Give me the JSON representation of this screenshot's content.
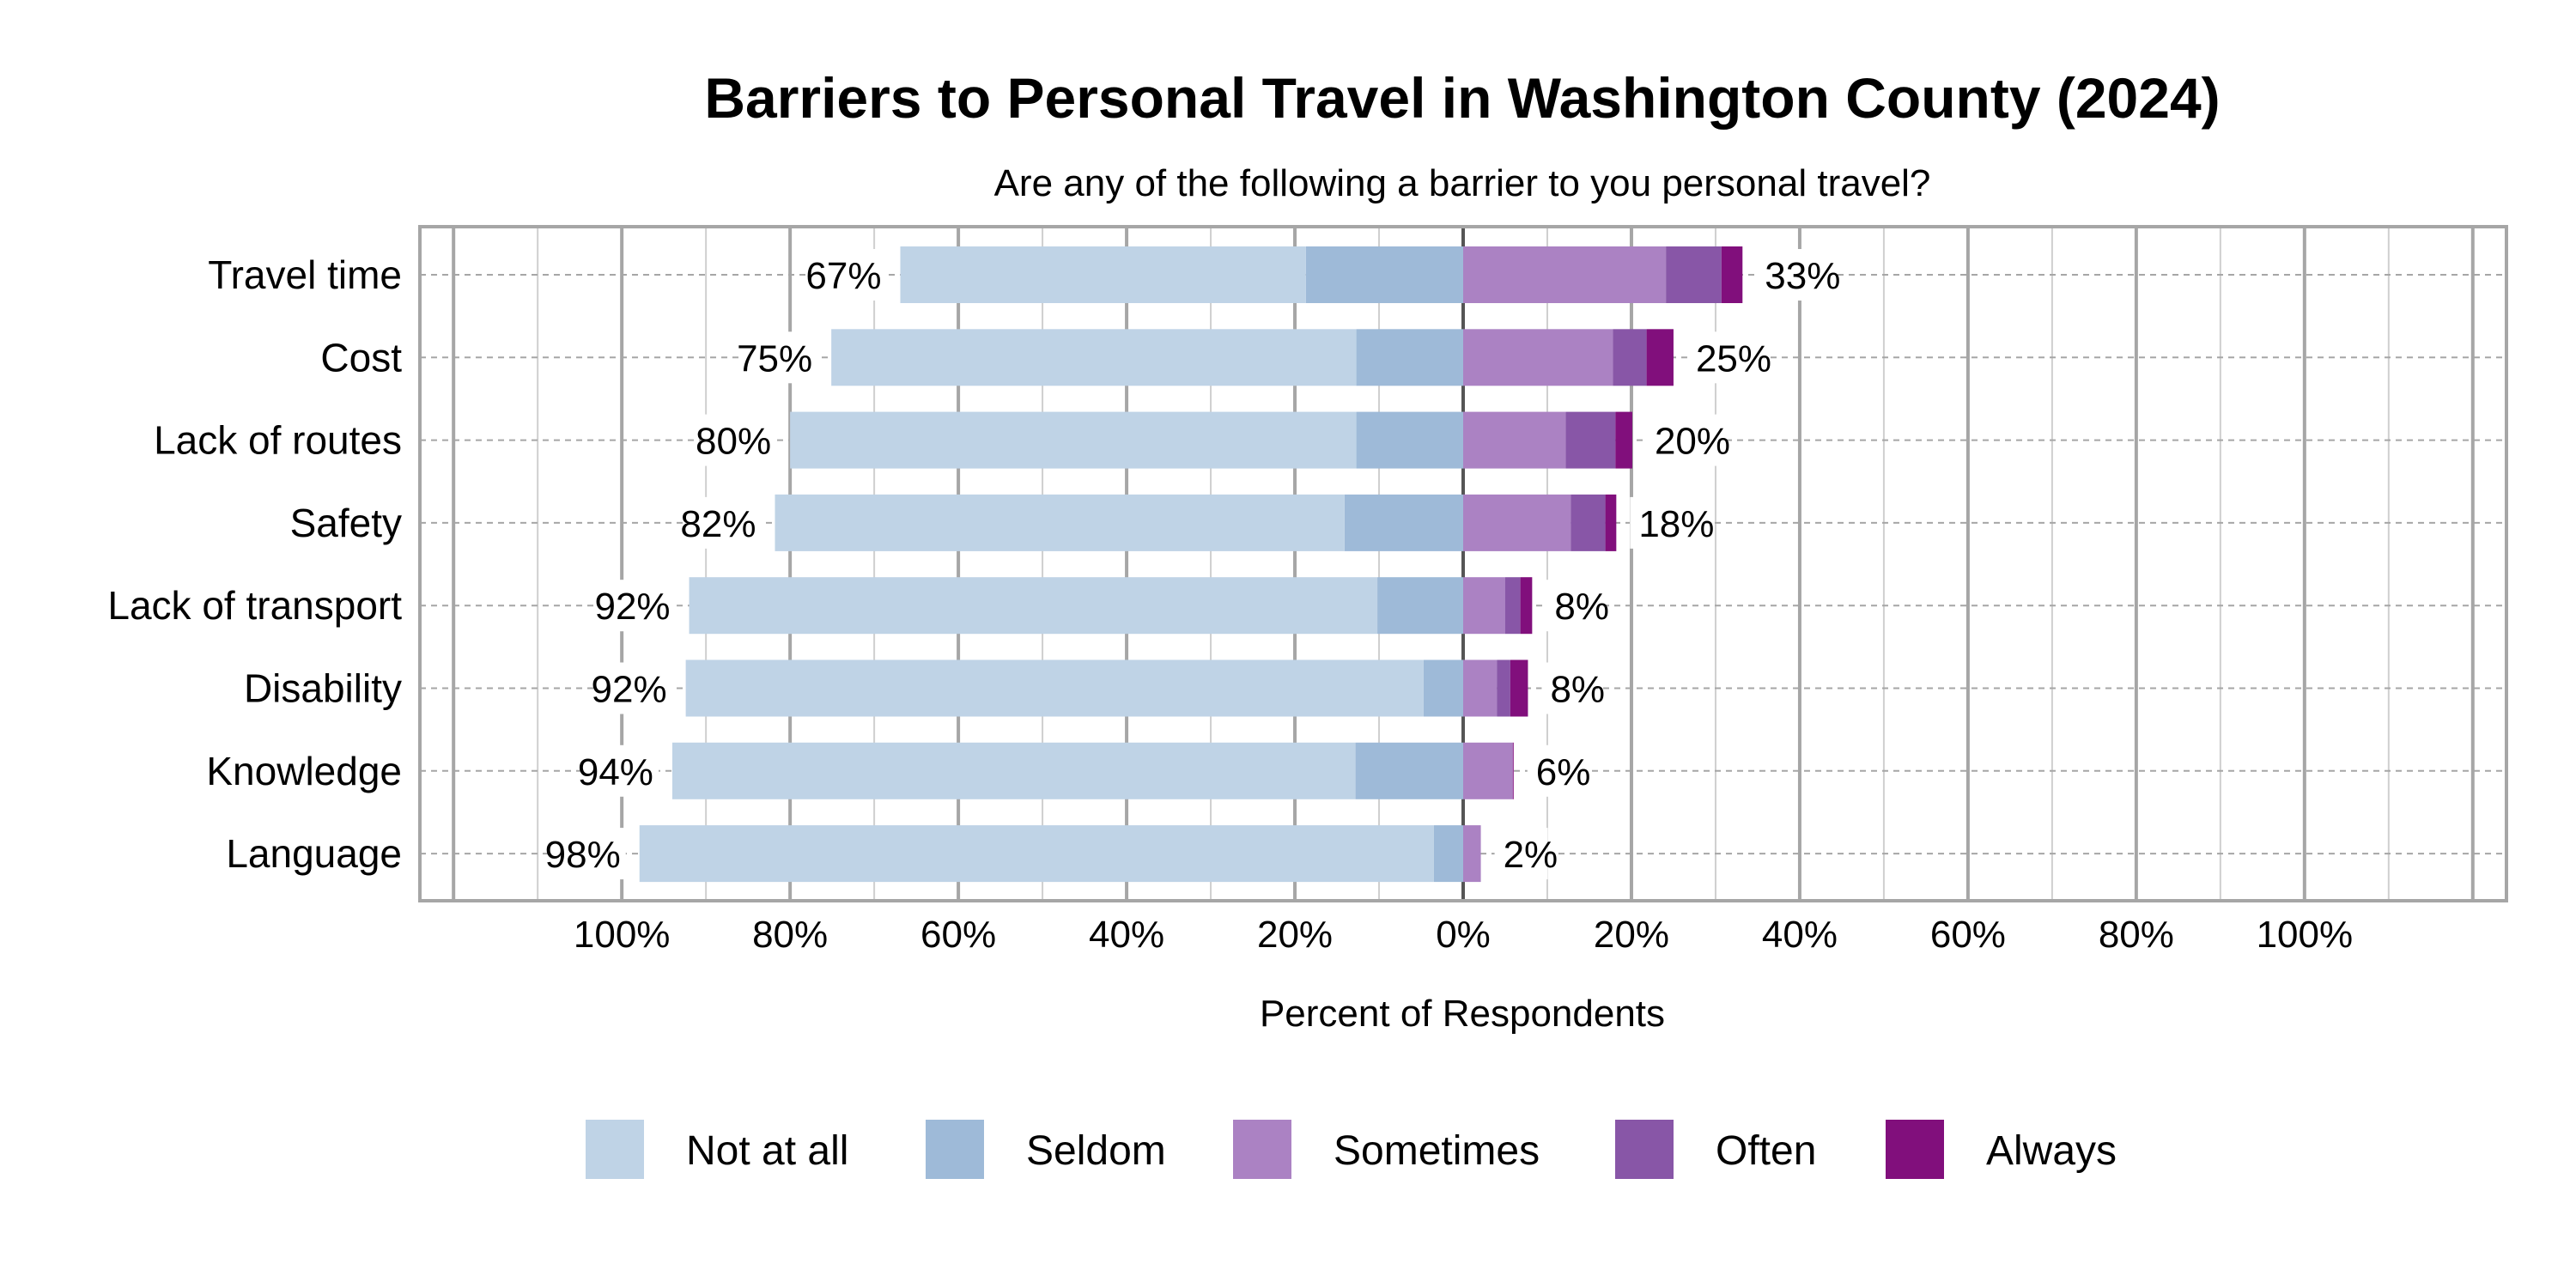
{
  "chart_data": {
    "type": "bar",
    "orientation": "horizontal",
    "stacked": "diverging",
    "title": "Barriers to Personal Travel in Washington County (2024)",
    "subtitle": "Are any of the following a barrier to you personal travel?",
    "xlabel": "Percent of Respondents",
    "ylabel": "",
    "xlim": [
      -124,
      124
    ],
    "xticks": [
      -100,
      -80,
      -60,
      -40,
      -20,
      0,
      20,
      40,
      60,
      80,
      100
    ],
    "xtick_labels": [
      "100%",
      "80%",
      "60%",
      "40%",
      "20%",
      "0%",
      "20%",
      "40%",
      "60%",
      "80%",
      "100%"
    ],
    "grid": true,
    "legend_position": "bottom",
    "categories": [
      "Travel time",
      "Cost",
      "Lack of routes",
      "Safety",
      "Lack of transport",
      "Disability",
      "Knowledge",
      "Language"
    ],
    "series": [
      {
        "name": "Not at all",
        "side": "negative",
        "color": "#bfd3e6",
        "values": [
          48.2,
          62.4,
          67.3,
          67.7,
          81.8,
          87.7,
          81.2,
          94.4
        ]
      },
      {
        "name": "Seldom",
        "side": "negative",
        "color": "#9ebad8",
        "values": [
          18.7,
          12.7,
          12.7,
          14.1,
          10.2,
          4.7,
          12.8,
          3.5
        ]
      },
      {
        "name": "Sometimes",
        "side": "positive",
        "color": "#ab82c3",
        "values": [
          24.1,
          17.8,
          12.2,
          12.8,
          5.0,
          4.0,
          5.9,
          2.1
        ]
      },
      {
        "name": "Often",
        "side": "positive",
        "color": "#8856a7",
        "values": [
          6.6,
          4.0,
          5.9,
          4.1,
          1.8,
          1.6,
          0.0,
          0.0
        ]
      },
      {
        "name": "Always",
        "side": "positive",
        "color": "#810f7c",
        "values": [
          2.5,
          3.2,
          2.0,
          1.3,
          1.4,
          2.1,
          0.1,
          0.0
        ]
      }
    ],
    "left_labels": [
      "67%",
      "75%",
      "80%",
      "82%",
      "92%",
      "92%",
      "94%",
      "98%"
    ],
    "right_labels": [
      "33%",
      "25%",
      "20%",
      "18%",
      "8%",
      "8%",
      "6%",
      "2%"
    ]
  }
}
